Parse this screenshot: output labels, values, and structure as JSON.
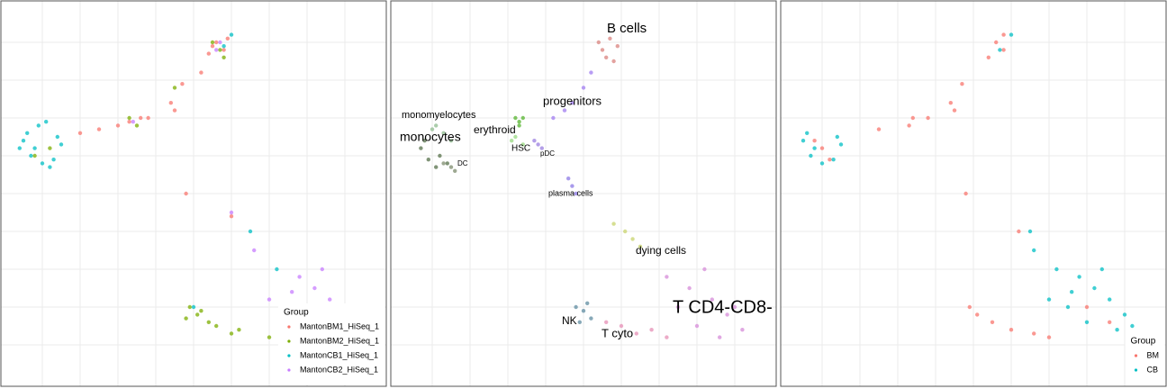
{
  "chart_data": [
    {
      "type": "scatter",
      "grid": true,
      "legend": "bottom-right",
      "legend_title": "Group",
      "xlim": [
        0,
        100
      ],
      "ylim": [
        0,
        100
      ],
      "xticks": [
        10,
        20,
        30,
        40,
        50,
        60,
        70,
        80,
        90
      ],
      "yticks": [
        10,
        20,
        30,
        40,
        50,
        60,
        70,
        80,
        90
      ],
      "series": [
        {
          "name": "MantonBM1_HiSeq_1",
          "color": "#F8766D",
          "x": [
            56,
            58,
            54,
            59,
            47,
            44,
            38,
            30,
            25,
            20,
            48,
            60,
            36,
            52,
            45,
            33,
            55
          ],
          "y": [
            90,
            88,
            87,
            91,
            79,
            74,
            70,
            68,
            67,
            66,
            50,
            44,
            70,
            82,
            72,
            69,
            89
          ]
        },
        {
          "name": "MantonBM2_HiSeq_1",
          "color": "#7CAE00",
          "x": [
            57,
            55,
            33,
            35,
            12,
            8,
            49,
            51,
            56,
            62,
            48,
            54,
            70,
            58,
            45,
            52,
            60
          ],
          "y": [
            88,
            90,
            70,
            68,
            62,
            60,
            20,
            18,
            15,
            14,
            17,
            16,
            12,
            86,
            78,
            19,
            13
          ]
        },
        {
          "name": "MantonCB1_HiSeq_1",
          "color": "#00BFC4",
          "x": [
            6,
            8,
            10,
            13,
            15,
            5,
            7,
            9,
            14,
            12,
            60,
            65,
            50,
            72,
            58,
            11,
            4
          ],
          "y": [
            66,
            62,
            58,
            59,
            63,
            64,
            60,
            68,
            65,
            57,
            92,
            40,
            20,
            30,
            89,
            69,
            62
          ]
        },
        {
          "name": "MantonCB2_HiSeq_1",
          "color": "#C77CFF",
          "x": [
            57,
            56,
            34,
            78,
            82,
            86,
            90,
            88,
            75,
            80,
            70,
            85,
            66,
            92,
            60,
            84,
            76
          ],
          "y": [
            90,
            88,
            69,
            28,
            25,
            22,
            18,
            14,
            20,
            16,
            22,
            12,
            35,
            15,
            45,
            30,
            24
          ]
        }
      ]
    },
    {
      "type": "scatter",
      "grid": true,
      "legend": false,
      "xlim": [
        0,
        100
      ],
      "ylim": [
        0,
        100
      ],
      "xticks": [
        10,
        20,
        30,
        40,
        50,
        60,
        70,
        80,
        90
      ],
      "yticks": [
        10,
        20,
        30,
        40,
        50,
        60,
        70,
        80,
        90
      ],
      "series": [
        {
          "name": "B cells",
          "color": "#D9837F",
          "x": [
            55,
            57,
            59,
            56,
            58,
            54
          ],
          "y": [
            88,
            91,
            89,
            86,
            85,
            90
          ]
        },
        {
          "name": "monomyelocytes",
          "color": "#8FBC8F",
          "x": [
            10,
            13,
            15,
            11
          ],
          "y": [
            67,
            66,
            64,
            68
          ]
        },
        {
          "name": "erythroid",
          "color": "#55B42F",
          "x": [
            32,
            33,
            34,
            33
          ],
          "y": [
            70,
            69,
            70,
            68
          ]
        },
        {
          "name": "monocytes",
          "color": "#55704A",
          "x": [
            7,
            9,
            11,
            8,
            12,
            14
          ],
          "y": [
            62,
            59,
            57,
            64,
            60,
            58
          ]
        },
        {
          "name": "HSC",
          "color": "#98D982",
          "x": [
            31,
            32,
            34
          ],
          "y": [
            64,
            65,
            63
          ]
        },
        {
          "name": "pDC",
          "color": "#9B7FE0",
          "x": [
            37,
            38,
            39
          ],
          "y": [
            64,
            63,
            62
          ]
        },
        {
          "name": "DC",
          "color": "#7E8C6E",
          "x": [
            13,
            15,
            16
          ],
          "y": [
            58,
            57,
            56
          ]
        },
        {
          "name": "progenitors",
          "color": "#A07CF0",
          "x": [
            42,
            45,
            47,
            50,
            52
          ],
          "y": [
            70,
            72,
            74,
            78,
            82
          ]
        },
        {
          "name": "plasma cells",
          "color": "#8C7AE6",
          "x": [
            46,
            47,
            48
          ],
          "y": [
            54,
            52,
            50
          ]
        },
        {
          "name": "dying cells",
          "color": "#C8D46E",
          "x": [
            61,
            63,
            65,
            58
          ],
          "y": [
            40,
            38,
            36,
            42
          ]
        },
        {
          "name": "T CD4-CD8-",
          "color": "#D58BD8",
          "x": [
            72,
            78,
            84,
            88,
            92,
            80,
            86,
            75,
            90,
            82
          ],
          "y": [
            28,
            25,
            22,
            18,
            14,
            15,
            12,
            20,
            20,
            30
          ]
        },
        {
          "name": "NK",
          "color": "#5F8CA0",
          "x": [
            48,
            50,
            52,
            49,
            51
          ],
          "y": [
            20,
            19,
            17,
            16,
            21
          ]
        },
        {
          "name": "T cyto",
          "color": "#E58FB5",
          "x": [
            56,
            60,
            64,
            68,
            72
          ],
          "y": [
            16,
            15,
            13,
            14,
            12
          ]
        }
      ]
    },
    {
      "type": "scatter",
      "grid": true,
      "legend": "bottom-right",
      "legend_title": "Group",
      "xlim": [
        0,
        100
      ],
      "ylim": [
        0,
        100
      ],
      "xticks": [
        10,
        20,
        30,
        40,
        50,
        60,
        70,
        80,
        90
      ],
      "yticks": [
        10,
        20,
        30,
        40,
        50,
        60,
        70,
        80,
        90
      ],
      "series": [
        {
          "name": "BM",
          "color": "#F8766D",
          "x": [
            56,
            58,
            54,
            47,
            44,
            34,
            33,
            25,
            10,
            12,
            8,
            49,
            51,
            55,
            60,
            66,
            70,
            48,
            62,
            80,
            86,
            58,
            45,
            38
          ],
          "y": [
            90,
            88,
            86,
            79,
            74,
            70,
            68,
            67,
            62,
            59,
            64,
            20,
            18,
            16,
            14,
            13,
            12,
            50,
            40,
            20,
            16,
            92,
            72,
            70
          ]
        },
        {
          "name": "CB",
          "color": "#00BFC4",
          "x": [
            6,
            8,
            10,
            13,
            15,
            5,
            7,
            14,
            60,
            57,
            65,
            72,
            78,
            82,
            86,
            90,
            88,
            75,
            80,
            92,
            84,
            70,
            66,
            76
          ],
          "y": [
            66,
            62,
            58,
            59,
            63,
            64,
            60,
            65,
            92,
            88,
            40,
            30,
            28,
            25,
            22,
            18,
            14,
            20,
            16,
            15,
            30,
            22,
            35,
            24
          ]
        }
      ]
    }
  ]
}
